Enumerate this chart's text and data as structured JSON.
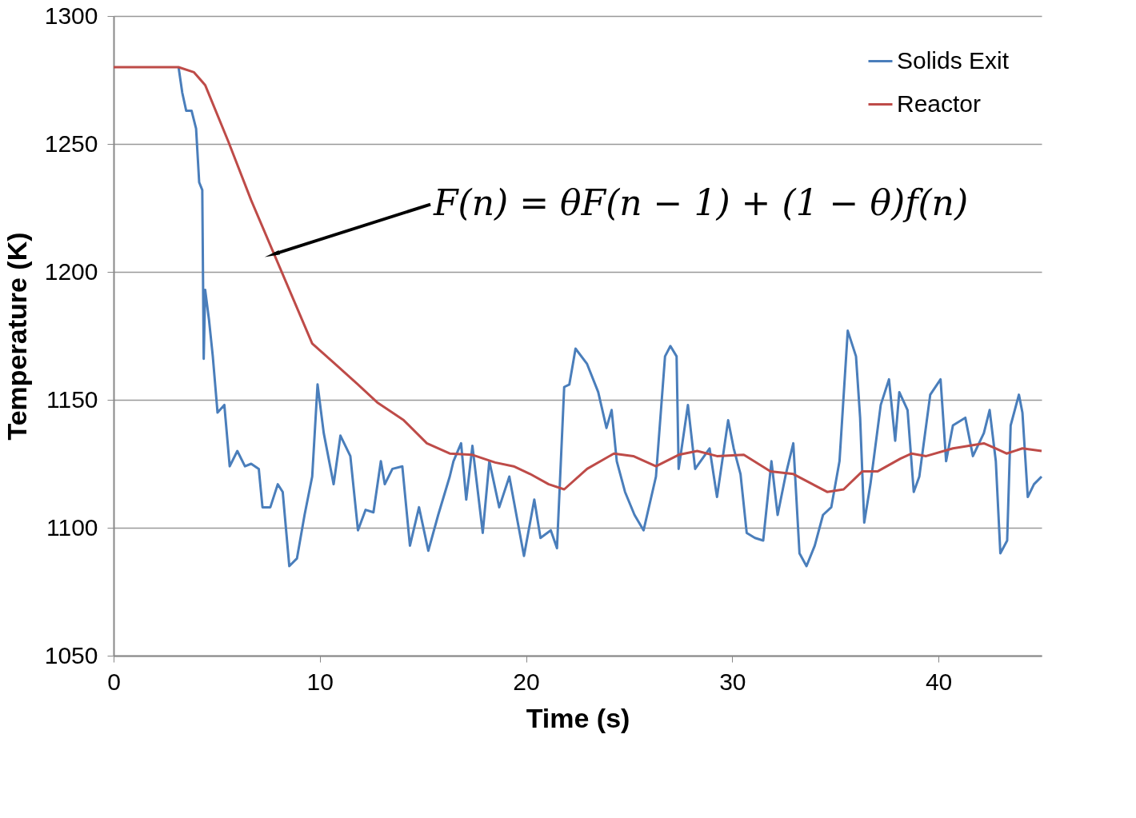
{
  "chart_data": {
    "type": "line",
    "xlabel": "Time (s)",
    "ylabel": "Temperature (K)",
    "xlim": [
      0,
      45
    ],
    "xticks": [
      0,
      10,
      20,
      30,
      40
    ],
    "ylim": [
      1050,
      1300
    ],
    "yticks": [
      1050,
      1100,
      1150,
      1200,
      1250,
      1300
    ],
    "grid": "y",
    "legend": "top right",
    "line_style": "solid",
    "marker": "none",
    "annotations": [
      {
        "text": "F(n) = θF(n − 1) + (1 − θ)f(n)",
        "x": 7.8,
        "y": 1207
      }
    ],
    "series": [
      {
        "name": "Solids Exit",
        "color": "#4a7ebb",
        "x": [
          3.15,
          3.33,
          3.52,
          3.78,
          4.0,
          4.15,
          4.3,
          4.37,
          4.44,
          4.63,
          4.81,
          5.04,
          5.37,
          5.63,
          6.0,
          6.37,
          6.67,
          7.04,
          7.22,
          7.6,
          7.96,
          8.2,
          8.52,
          8.89,
          9.26,
          9.63,
          9.89,
          10.19,
          10.67,
          11.0,
          11.48,
          11.85,
          12.22,
          12.6,
          12.96,
          13.15,
          13.52,
          14.0,
          14.37,
          14.81,
          15.26,
          15.74,
          16.3,
          16.48,
          16.85,
          17.1,
          17.4,
          17.9,
          18.22,
          18.7,
          19.19,
          19.6,
          19.9,
          20.4,
          20.7,
          21.2,
          21.5,
          21.85,
          22.1,
          22.4,
          22.96,
          23.5,
          23.9,
          24.15,
          24.4,
          24.8,
          25.26,
          25.7,
          26.3,
          26.74,
          27.0,
          27.3,
          27.4,
          27.85,
          28.2,
          28.9,
          29.26,
          29.8,
          30.07,
          30.4,
          30.7,
          31.1,
          31.5,
          31.9,
          32.2,
          32.6,
          32.96,
          33.26,
          33.6,
          34.0,
          34.4,
          34.8,
          35.2,
          35.6,
          36.0,
          36.2,
          36.4,
          36.7,
          37.2,
          37.6,
          37.9,
          38.1,
          38.5,
          38.8,
          39.07,
          39.6,
          40.1,
          40.37,
          40.7,
          41.3,
          41.67,
          42.2,
          42.48,
          42.78,
          43.0,
          43.33,
          43.5,
          43.9,
          44.07,
          44.33,
          44.63,
          45.0
        ],
        "values": [
          1280,
          1270,
          1263,
          1263,
          1256,
          1235,
          1232,
          1166,
          1193,
          1181,
          1167,
          1145,
          1148,
          1124,
          1130,
          1124,
          1125,
          1123,
          1108,
          1108,
          1117,
          1114,
          1085,
          1088,
          1105,
          1120,
          1156,
          1137,
          1117,
          1136,
          1128,
          1099,
          1107,
          1106,
          1126,
          1117,
          1123,
          1124,
          1093,
          1108,
          1091,
          1105,
          1120,
          1126,
          1133,
          1111,
          1132,
          1098,
          1126,
          1108,
          1120,
          1102,
          1089,
          1111,
          1096,
          1099,
          1092,
          1155,
          1156,
          1170,
          1164,
          1153,
          1139,
          1146,
          1126,
          1114,
          1105,
          1099,
          1120,
          1167,
          1171,
          1167,
          1123,
          1148,
          1123,
          1131,
          1112,
          1142,
          1131,
          1121,
          1098,
          1096,
          1095,
          1126,
          1105,
          1121,
          1133,
          1090,
          1085,
          1093,
          1105,
          1108,
          1126,
          1177,
          1167,
          1143,
          1102,
          1117,
          1148,
          1158,
          1134,
          1153,
          1146,
          1114,
          1120,
          1152,
          1158,
          1126,
          1140,
          1143,
          1128,
          1137,
          1146,
          1126,
          1090,
          1095,
          1140,
          1152,
          1145,
          1112,
          1117,
          1120
        ]
      },
      {
        "name": "Reactor",
        "color": "#be4b48",
        "x": [
          0,
          3.15,
          3.9,
          4.44,
          5.56,
          6.67,
          7.78,
          8.52,
          9.63,
          10.74,
          11.85,
          12.78,
          14.07,
          15.19,
          16.3,
          17.4,
          18.5,
          19.4,
          20.2,
          21.1,
          21.85,
          22.96,
          24.26,
          25.2,
          26.3,
          27.4,
          28.3,
          29.26,
          30.56,
          31.85,
          32.96,
          34.6,
          35.4,
          36.3,
          37.04,
          38.15,
          38.7,
          39.4,
          40.7,
          42.2,
          42.78,
          43.3,
          44.07,
          45
        ],
        "values": [
          1280,
          1280,
          1278,
          1273,
          1251,
          1228,
          1207,
          1193,
          1172,
          1164,
          1156,
          1149,
          1142,
          1133,
          1129,
          1128.5,
          1125.5,
          1124,
          1121,
          1117,
          1115,
          1123,
          1129,
          1128,
          1124,
          1128.5,
          1130,
          1128,
          1128.5,
          1122,
          1121,
          1114,
          1115,
          1122,
          1122,
          1127,
          1129,
          1128,
          1131,
          1133,
          1131,
          1129,
          1131,
          1130
        ]
      }
    ]
  }
}
